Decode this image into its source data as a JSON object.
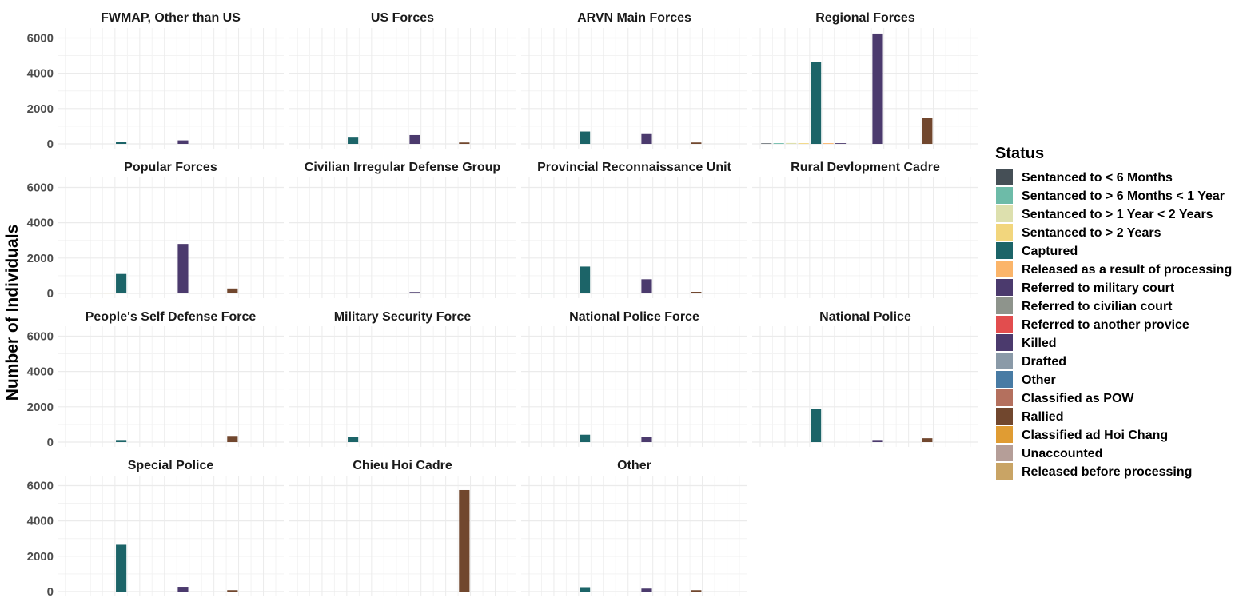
{
  "chart_data": {
    "type": "bar",
    "layout": "facet_wrap",
    "ylabel": "Number of Individuals",
    "xlabel": "",
    "ylim": [
      0,
      6600
    ],
    "yticks": [
      0,
      2000,
      4000,
      6000
    ],
    "grid": true,
    "legend_position": "right",
    "legend": {
      "title": "Status",
      "entries": [
        {
          "label": "Sentanced to < 6 Months",
          "color": "#454f56"
        },
        {
          "label": "Sentanced to > 6 Months < 1 Year",
          "color": "#6dbba8"
        },
        {
          "label": "Sentanced to > 1 Year < 2 Years",
          "color": "#dde0ae"
        },
        {
          "label": "Sentanced to > 2 Years",
          "color": "#f2d67d"
        },
        {
          "label": "Captured",
          "color": "#1c6468"
        },
        {
          "label": "Released as a result of processing",
          "color": "#fbb56a"
        },
        {
          "label": "Referred to military court",
          "color": "#4b3a6d"
        },
        {
          "label": "Referred to civilian court",
          "color": "#8e948c"
        },
        {
          "label": "Referred to another provice",
          "color": "#e24d4e"
        },
        {
          "label": "Killed",
          "color": "#4b3a6d"
        },
        {
          "label": "Drafted",
          "color": "#8a9aa8"
        },
        {
          "label": "Other",
          "color": "#487ba4"
        },
        {
          "label": "Classified as POW",
          "color": "#b4705e"
        },
        {
          "label": "Rallied",
          "color": "#71472e"
        },
        {
          "label": "Classified ad Hoi Chang",
          "color": "#e09c33"
        },
        {
          "label": "Unaccounted",
          "color": "#b59e98"
        },
        {
          "label": "Released before processing",
          "color": "#c9a465"
        }
      ]
    },
    "facets": [
      {
        "title": "FWMAP, Other than US",
        "values": [
          0,
          0,
          0,
          0,
          100,
          0,
          0,
          0,
          0,
          200,
          0,
          0,
          0,
          0,
          0,
          0,
          0
        ]
      },
      {
        "title": "US Forces",
        "values": [
          0,
          0,
          0,
          0,
          400,
          0,
          0,
          0,
          0,
          500,
          0,
          0,
          0,
          80,
          0,
          0,
          0
        ]
      },
      {
        "title": "ARVN Main Forces",
        "values": [
          0,
          0,
          0,
          0,
          700,
          0,
          0,
          0,
          0,
          600,
          0,
          0,
          0,
          80,
          0,
          0,
          0
        ]
      },
      {
        "title": "Regional Forces",
        "values": [
          30,
          40,
          50,
          40,
          4650,
          40,
          40,
          0,
          0,
          6250,
          0,
          0,
          0,
          1480,
          0,
          0,
          0
        ]
      },
      {
        "title": "Popular Forces",
        "values": [
          0,
          0,
          20,
          20,
          1100,
          0,
          0,
          0,
          0,
          2800,
          0,
          0,
          0,
          280,
          0,
          0,
          0
        ]
      },
      {
        "title": "Civilian Irregular Defense Group",
        "values": [
          0,
          0,
          0,
          0,
          40,
          0,
          0,
          0,
          0,
          80,
          0,
          0,
          0,
          0,
          0,
          0,
          0
        ]
      },
      {
        "title": "Provincial Reconnaissance Unit",
        "values": [
          20,
          20,
          30,
          30,
          1520,
          30,
          0,
          0,
          0,
          800,
          0,
          0,
          0,
          90,
          0,
          0,
          0
        ]
      },
      {
        "title": "Rural Devlopment Cadre",
        "values": [
          0,
          0,
          0,
          0,
          30,
          0,
          0,
          0,
          0,
          40,
          0,
          0,
          0,
          30,
          0,
          0,
          0
        ]
      },
      {
        "title": "People's Self Defense Force",
        "values": [
          0,
          0,
          0,
          0,
          120,
          0,
          0,
          0,
          0,
          0,
          0,
          0,
          0,
          350,
          0,
          0,
          0
        ]
      },
      {
        "title": "Military Security Force",
        "values": [
          0,
          0,
          0,
          0,
          300,
          0,
          0,
          0,
          0,
          0,
          0,
          0,
          0,
          0,
          0,
          0,
          0
        ]
      },
      {
        "title": "National Police Force",
        "values": [
          0,
          0,
          0,
          0,
          420,
          0,
          0,
          0,
          0,
          300,
          0,
          0,
          0,
          0,
          0,
          0,
          0
        ]
      },
      {
        "title": "National Police",
        "values": [
          0,
          0,
          0,
          0,
          1900,
          0,
          0,
          0,
          0,
          120,
          0,
          0,
          0,
          220,
          0,
          0,
          0
        ]
      },
      {
        "title": "Special Police",
        "values": [
          0,
          0,
          0,
          0,
          2650,
          0,
          0,
          0,
          0,
          270,
          0,
          0,
          0,
          80,
          0,
          0,
          0
        ]
      },
      {
        "title": "Chieu Hoi Cadre",
        "values": [
          0,
          0,
          0,
          0,
          0,
          0,
          0,
          0,
          0,
          0,
          0,
          0,
          0,
          5750,
          0,
          0,
          0
        ]
      },
      {
        "title": "Other",
        "values": [
          0,
          0,
          0,
          0,
          250,
          0,
          0,
          0,
          0,
          170,
          0,
          0,
          0,
          80,
          0,
          0,
          0
        ]
      }
    ]
  }
}
